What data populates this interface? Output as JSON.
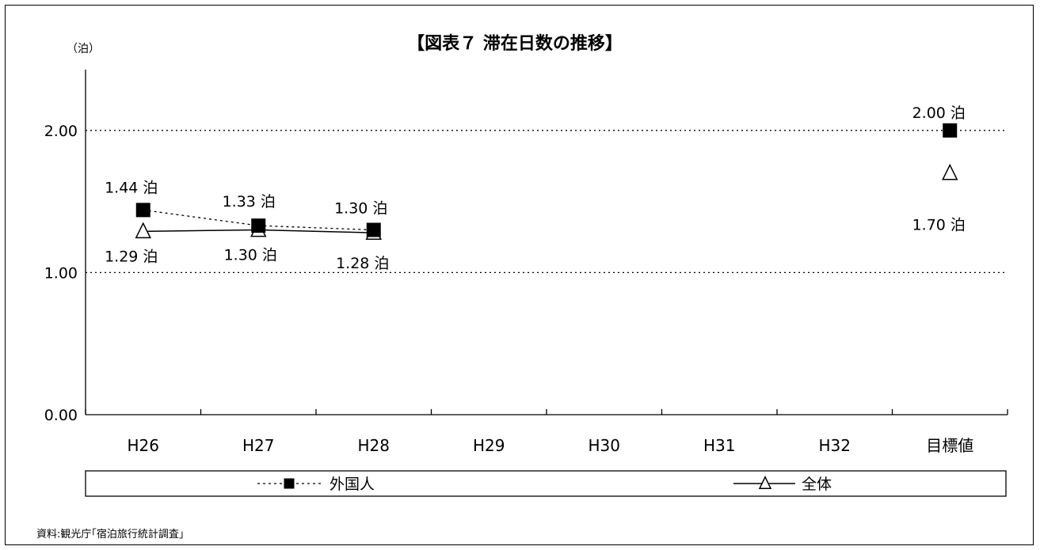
{
  "chart_data": {
    "type": "line",
    "title": "【図表７ 滞在日数の推移】",
    "ylabel": "（泊）",
    "xlabel": "",
    "ylim": [
      0,
      2.5
    ],
    "yticks": [
      "0.00",
      "1.00",
      "2.00"
    ],
    "categories": [
      "H26",
      "H27",
      "H28",
      "H29",
      "H30",
      "H31",
      "H32",
      "目標値"
    ],
    "series": [
      {
        "name": "外国人",
        "marker": "square",
        "line": "dotted",
        "values": [
          1.44,
          1.33,
          1.3,
          null,
          null,
          null,
          null,
          2.0
        ],
        "labels": [
          "1.44 泊",
          "1.33 泊",
          "1.30 泊",
          "",
          "",
          "",
          "",
          "2.00 泊"
        ]
      },
      {
        "name": "全体",
        "marker": "triangle",
        "line": "solid",
        "values": [
          1.29,
          1.3,
          1.28,
          null,
          null,
          null,
          null,
          1.7
        ],
        "labels": [
          "1.29 泊",
          "1.30 泊",
          "1.28 泊",
          "",
          "",
          "",
          "",
          "1.70 泊"
        ]
      }
    ],
    "grid": "horizontal dotted",
    "legend": "bottom"
  },
  "source": "資料:観光庁｢宿泊旅行統計調査｣"
}
